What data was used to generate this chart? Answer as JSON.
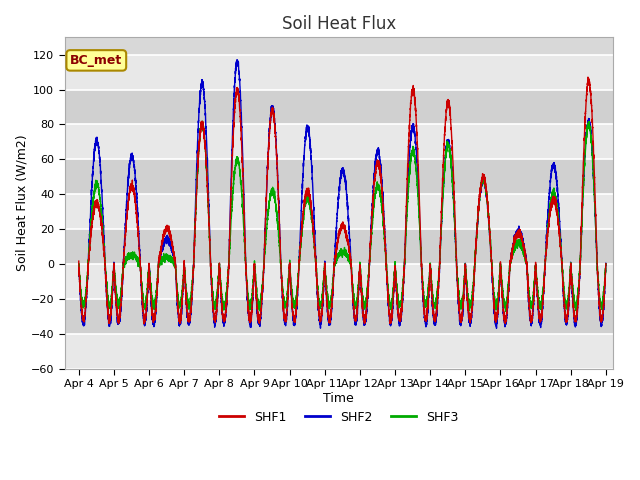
{
  "title": "Soil Heat Flux",
  "xlabel": "Time",
  "ylabel": "Soil Heat Flux (W/m2)",
  "ylim": [
    -60,
    130
  ],
  "yticks": [
    -60,
    -40,
    -20,
    0,
    20,
    40,
    60,
    80,
    100,
    120
  ],
  "xlim_days": [
    3.6,
    19.2
  ],
  "xtick_labels": [
    "Apr 4",
    "Apr 5",
    "Apr 6",
    "Apr 7",
    "Apr 8",
    "Apr 9",
    "Apr 10",
    "Apr 11",
    "Apr 12",
    "Apr 13",
    "Apr 14",
    "Apr 15",
    "Apr 16",
    "Apr 17",
    "Apr 18",
    "Apr 19"
  ],
  "xtick_positions": [
    4,
    5,
    6,
    7,
    8,
    9,
    10,
    11,
    12,
    13,
    14,
    15,
    16,
    17,
    18,
    19
  ],
  "shf1_color": "#cc0000",
  "shf2_color": "#0000cc",
  "shf3_color": "#00aa00",
  "legend_label": "BC_met",
  "legend_bg": "#ffff99",
  "legend_border": "#aa8800",
  "fig_bg": "#ffffff",
  "plot_bg": "#d8d8d8",
  "band_color_light": "#e8e8e8",
  "band_color_dark": "#d0d0d0",
  "grid_color": "#ffffff",
  "title_fontsize": 12,
  "axis_label_fontsize": 9,
  "tick_fontsize": 8,
  "linewidth": 1.0,
  "n_points": 7200,
  "days_start": 4,
  "days_end": 19,
  "day_amps_shf1": {
    "4": 35,
    "5": 45,
    "6": 20,
    "7": 80,
    "8": 100,
    "9": 88,
    "10": 42,
    "11": 22,
    "12": 58,
    "13": 100,
    "14": 93,
    "15": 50,
    "16": 18,
    "17": 37,
    "18": 105,
    "19": 10
  },
  "day_amps_shf2": {
    "4": 71,
    "5": 62,
    "6": 14,
    "7": 104,
    "8": 116,
    "9": 90,
    "10": 78,
    "11": 54,
    "12": 65,
    "13": 79,
    "14": 70,
    "15": 48,
    "16": 19,
    "17": 57,
    "18": 82,
    "19": 10
  },
  "day_amps_shf3": {
    "4": 46,
    "5": 5,
    "6": 4,
    "7": 80,
    "8": 60,
    "9": 42,
    "10": 37,
    "11": 7,
    "12": 45,
    "13": 65,
    "14": 68,
    "15": 49,
    "16": 12,
    "17": 41,
    "18": 80,
    "19": 10
  },
  "night_base_shf1": -32,
  "night_base_shf2": -34,
  "night_base_shf3": -24
}
